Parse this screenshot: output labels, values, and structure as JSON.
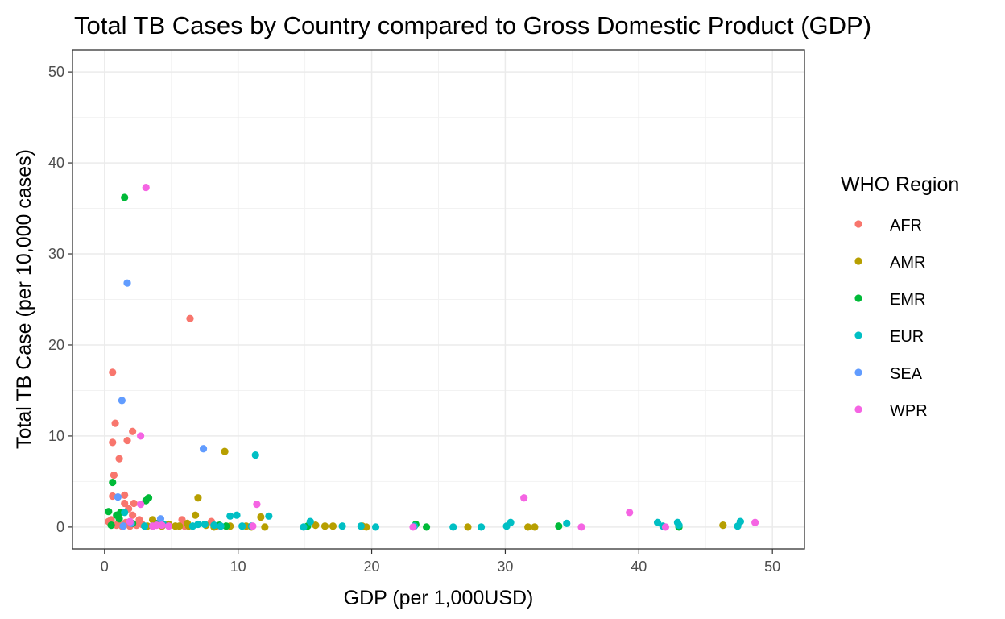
{
  "chart_data": {
    "type": "scatter",
    "title": "Total TB Cases by Country compared to Gross Domestic Product (GDP)",
    "xlabel": "GDP (per 1,000USD)",
    "ylabel": "Total TB Case (per 10,000 cases)",
    "xlim": [
      -2.4,
      52.4
    ],
    "ylim": [
      -2.4,
      52.4
    ],
    "xticks": [
      0,
      10,
      20,
      30,
      40,
      50
    ],
    "yticks": [
      0,
      10,
      20,
      30,
      40,
      50
    ],
    "grid": true,
    "legend": {
      "title": "WHO Region",
      "position": "right"
    },
    "series": [
      {
        "name": "AFR",
        "color": "#F8766D",
        "points": [
          [
            0.5,
            0.8
          ],
          [
            0.6,
            9.3
          ],
          [
            0.6,
            17.0
          ],
          [
            0.7,
            5.7
          ],
          [
            0.8,
            11.4
          ],
          [
            0.6,
            3.4
          ],
          [
            1.1,
            7.5
          ],
          [
            1.3,
            0.1
          ],
          [
            1.5,
            3.5
          ],
          [
            1.5,
            2.6
          ],
          [
            1.7,
            9.5
          ],
          [
            1.8,
            2.0
          ],
          [
            2.1,
            10.5
          ],
          [
            2.2,
            2.6
          ],
          [
            2.1,
            1.3
          ],
          [
            0.9,
            0.2
          ],
          [
            1.0,
            0.4
          ],
          [
            1.6,
            0.5
          ],
          [
            2.4,
            0.2
          ],
          [
            2.6,
            0.8
          ],
          [
            6.4,
            22.9
          ],
          [
            5.8,
            0.8
          ],
          [
            6.0,
            0.1
          ],
          [
            8.0,
            0.6
          ],
          [
            8.4,
            0.1
          ],
          [
            1.9,
            0.1
          ],
          [
            0.3,
            0.6
          ],
          [
            2.8,
            0.3
          ]
        ]
      },
      {
        "name": "AMR",
        "color": "#B79F00",
        "points": [
          [
            3.6,
            0.8
          ],
          [
            3.2,
            0.1
          ],
          [
            4.3,
            0.1
          ],
          [
            4.8,
            0.3
          ],
          [
            5.3,
            0.1
          ],
          [
            5.6,
            0.1
          ],
          [
            6.2,
            0.4
          ],
          [
            6.3,
            0.1
          ],
          [
            6.8,
            1.3
          ],
          [
            7.0,
            3.2
          ],
          [
            7.6,
            0.2
          ],
          [
            8.2,
            0.0
          ],
          [
            9.0,
            8.3
          ],
          [
            9.4,
            0.1
          ],
          [
            10.6,
            0.1
          ],
          [
            11.0,
            0.0
          ],
          [
            11.7,
            1.1
          ],
          [
            12.0,
            0.0
          ],
          [
            15.8,
            0.2
          ],
          [
            16.5,
            0.1
          ],
          [
            17.1,
            0.1
          ],
          [
            19.3,
            0.1
          ],
          [
            19.6,
            0.0
          ],
          [
            27.2,
            0.0
          ],
          [
            31.7,
            0.0
          ],
          [
            32.2,
            0.0
          ],
          [
            46.3,
            0.2
          ],
          [
            3.8,
            0.3
          ]
        ]
      },
      {
        "name": "EMR",
        "color": "#00BA38",
        "points": [
          [
            0.3,
            1.7
          ],
          [
            0.6,
            4.9
          ],
          [
            0.9,
            1.3
          ],
          [
            1.1,
            0.9
          ],
          [
            1.5,
            36.2
          ],
          [
            3.3,
            3.2
          ],
          [
            3.1,
            2.9
          ],
          [
            2.1,
            0.4
          ],
          [
            1.2,
            1.6
          ],
          [
            3.6,
            0.1
          ],
          [
            4.0,
            0.4
          ],
          [
            9.1,
            0.1
          ],
          [
            15.2,
            0.1
          ],
          [
            23.3,
            0.3
          ],
          [
            24.1,
            0.0
          ],
          [
            34.0,
            0.1
          ],
          [
            43.0,
            0.0
          ],
          [
            8.6,
            0.2
          ],
          [
            0.5,
            0.2
          ]
        ]
      },
      {
        "name": "EUR",
        "color": "#00BFC4",
        "points": [
          [
            1.5,
            1.6
          ],
          [
            3.0,
            0.1
          ],
          [
            4.4,
            0.3
          ],
          [
            6.6,
            0.1
          ],
          [
            7.0,
            0.3
          ],
          [
            7.5,
            0.3
          ],
          [
            8.2,
            0.2
          ],
          [
            8.7,
            0.1
          ],
          [
            9.4,
            1.2
          ],
          [
            9.9,
            1.3
          ],
          [
            10.3,
            0.1
          ],
          [
            11.0,
            0.1
          ],
          [
            11.3,
            7.9
          ],
          [
            12.3,
            1.2
          ],
          [
            14.9,
            0.0
          ],
          [
            15.4,
            0.6
          ],
          [
            17.8,
            0.1
          ],
          [
            19.2,
            0.1
          ],
          [
            20.3,
            0.0
          ],
          [
            23.2,
            0.1
          ],
          [
            26.1,
            0.0
          ],
          [
            28.2,
            0.0
          ],
          [
            30.1,
            0.1
          ],
          [
            30.4,
            0.5
          ],
          [
            34.6,
            0.4
          ],
          [
            41.4,
            0.5
          ],
          [
            41.8,
            0.1
          ],
          [
            42.9,
            0.5
          ],
          [
            43.0,
            0.2
          ],
          [
            47.4,
            0.1
          ],
          [
            47.6,
            0.6
          ]
        ]
      },
      {
        "name": "SEA",
        "color": "#619CFF",
        "points": [
          [
            1.0,
            3.3
          ],
          [
            1.3,
            13.9
          ],
          [
            1.7,
            26.8
          ],
          [
            2.0,
            0.4
          ],
          [
            4.2,
            0.9
          ],
          [
            7.4,
            8.6
          ],
          [
            1.4,
            0.1
          ]
        ]
      },
      {
        "name": "WPR",
        "color": "#F564E3",
        "points": [
          [
            3.1,
            37.3
          ],
          [
            2.7,
            10.0
          ],
          [
            2.7,
            2.5
          ],
          [
            3.6,
            0.1
          ],
          [
            3.9,
            0.2
          ],
          [
            4.3,
            0.2
          ],
          [
            4.8,
            0.1
          ],
          [
            11.4,
            2.5
          ],
          [
            11.1,
            0.1
          ],
          [
            23.1,
            0.0
          ],
          [
            31.4,
            3.2
          ],
          [
            35.7,
            0.0
          ],
          [
            39.3,
            1.6
          ],
          [
            42.0,
            0.0
          ],
          [
            48.7,
            0.5
          ],
          [
            1.9,
            0.6
          ]
        ]
      }
    ]
  }
}
